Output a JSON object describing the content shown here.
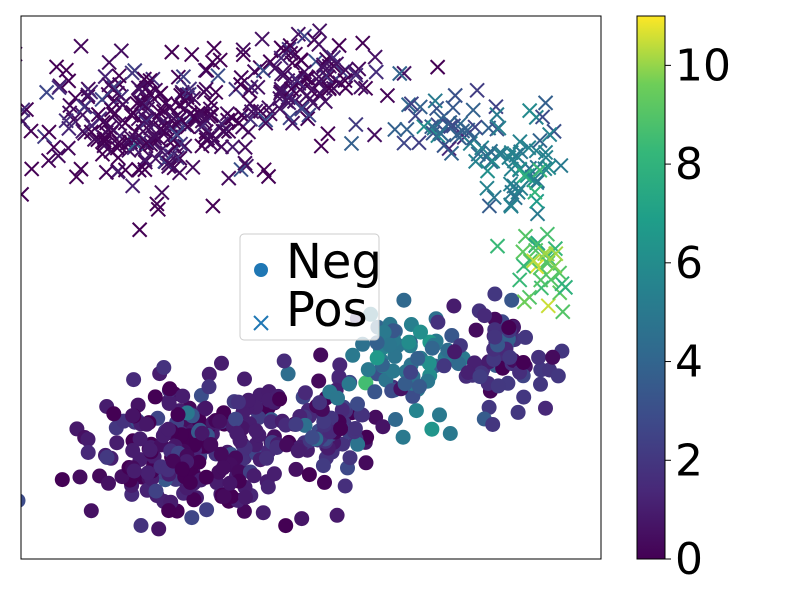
{
  "chart_data": {
    "type": "scatter",
    "title": "",
    "xlabel": "",
    "ylabel": "",
    "axis_ticks_visible": false,
    "colormap": "viridis",
    "colorbar": {
      "min": 0,
      "max": 11,
      "ticks": [
        0,
        2,
        4,
        6,
        8,
        10
      ],
      "tick_labels": [
        "0",
        "2",
        "4",
        "6",
        "8",
        "10"
      ]
    },
    "legend": {
      "placement": "center-left",
      "entries": [
        {
          "label": "Neg",
          "marker": "circle",
          "color": "#1f77b4"
        },
        {
          "label": "Pos",
          "marker": "x",
          "color": "#1f77b4"
        }
      ]
    },
    "series": [
      {
        "name": "Neg",
        "marker": "circle",
        "clusters": [
          {
            "cx": 0.3,
            "cy": 0.2,
            "sx": 0.09,
            "sy": 0.06,
            "n": 260,
            "value_mean": 1.0
          },
          {
            "cx": 0.52,
            "cy": 0.25,
            "sx": 0.05,
            "sy": 0.045,
            "n": 90,
            "value_mean": 1.8
          },
          {
            "cx": 0.66,
            "cy": 0.37,
            "sx": 0.06,
            "sy": 0.05,
            "n": 70,
            "value_mean": 5.0
          },
          {
            "cx": 0.83,
            "cy": 0.37,
            "sx": 0.05,
            "sy": 0.05,
            "n": 70,
            "value_mean": 2.0
          }
        ]
      },
      {
        "name": "Pos",
        "marker": "x",
        "clusters": [
          {
            "cx": 0.22,
            "cy": 0.8,
            "sx": 0.1,
            "sy": 0.06,
            "n": 260,
            "value_mean": 0.4
          },
          {
            "cx": 0.48,
            "cy": 0.88,
            "sx": 0.07,
            "sy": 0.045,
            "n": 110,
            "value_mean": 0.6
          },
          {
            "cx": 0.72,
            "cy": 0.8,
            "sx": 0.05,
            "sy": 0.03,
            "n": 45,
            "value_mean": 3.8
          },
          {
            "cx": 0.86,
            "cy": 0.72,
            "sx": 0.04,
            "sy": 0.05,
            "n": 55,
            "value_mean": 5.5
          },
          {
            "cx": 0.9,
            "cy": 0.55,
            "sx": 0.03,
            "sy": 0.05,
            "n": 35,
            "value_mean": 9.0
          }
        ]
      }
    ]
  }
}
